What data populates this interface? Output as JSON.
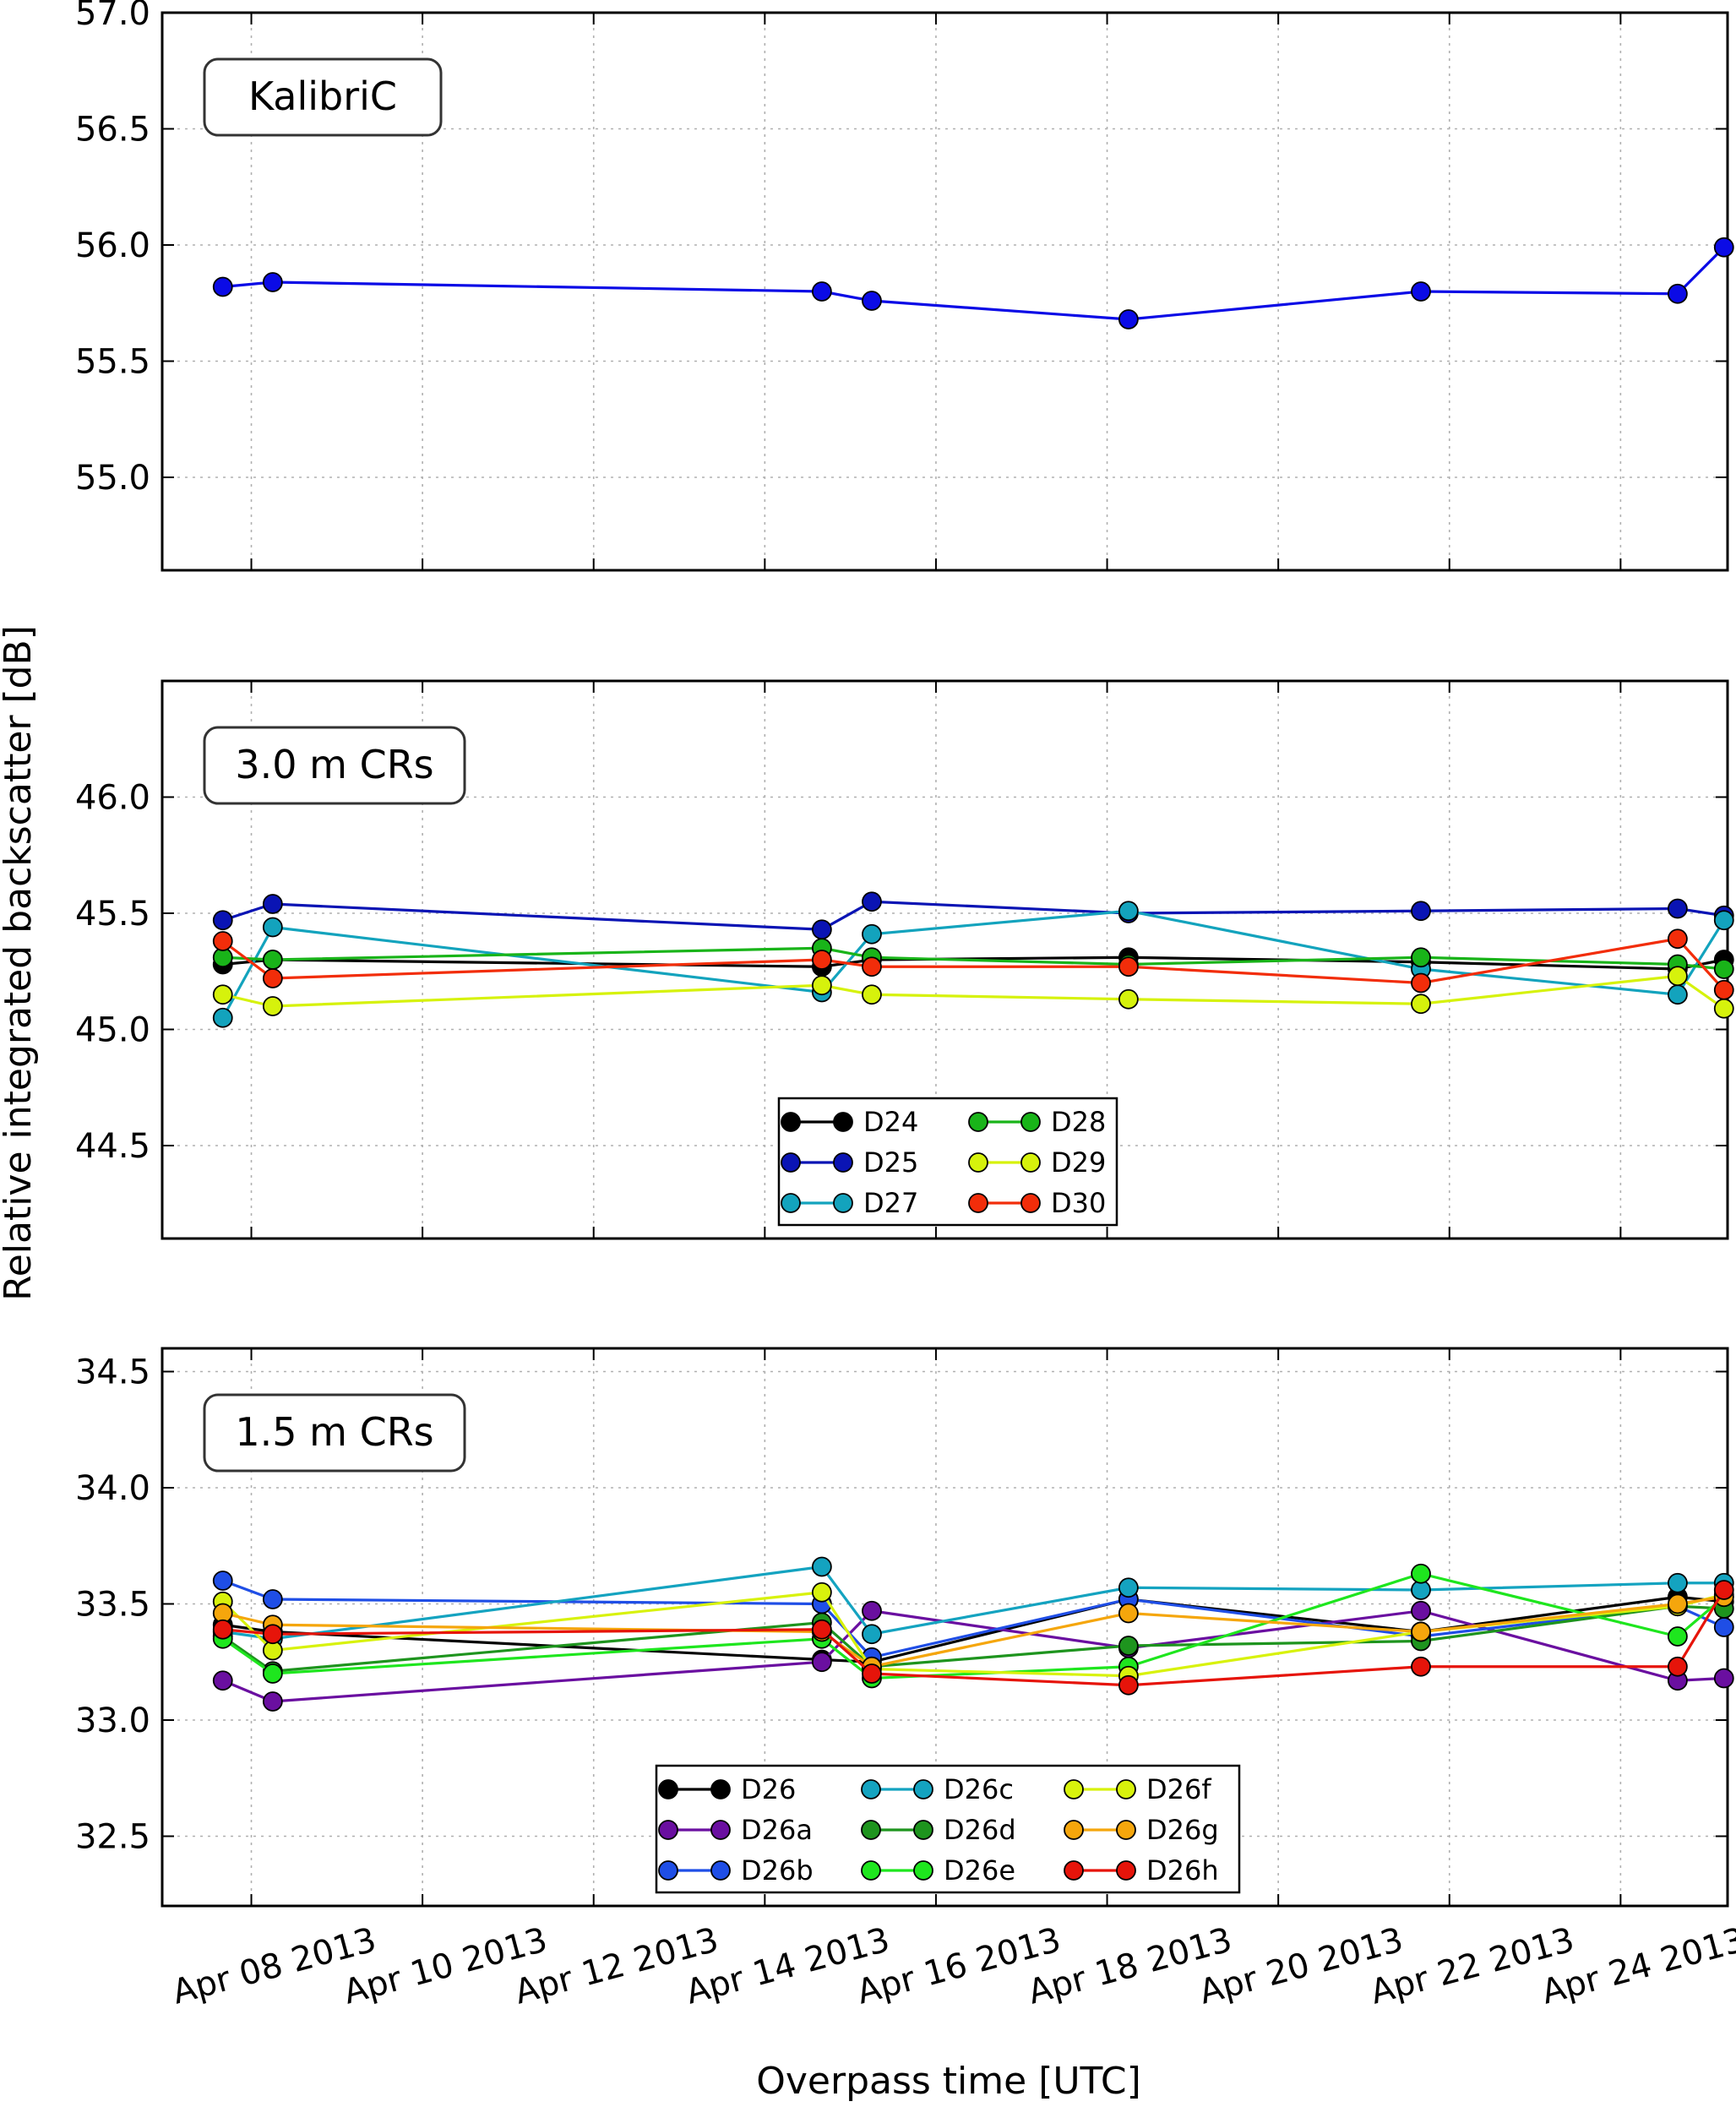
{
  "figure": {
    "ylabel": "Relative integrated backscatter [dB]",
    "xlabel": "Overpass time [UTC]"
  },
  "chart_data": [
    {
      "type": "line",
      "label": "KalibriC",
      "ylim": [
        54.6,
        57.0
      ],
      "yticks": [
        55.0,
        55.5,
        56.0,
        56.5,
        57.0
      ],
      "ytick_labels": [
        "55.0",
        "55.5",
        "56.0",
        "56.5",
        "57.0"
      ],
      "xlim": [
        "2013-04-06T23:00",
        "2013-04-25T06:00"
      ],
      "xticks": [
        "2013-04-08",
        "2013-04-10",
        "2013-04-12",
        "2013-04-14",
        "2013-04-16",
        "2013-04-18",
        "2013-04-20",
        "2013-04-22",
        "2013-04-24"
      ],
      "xtick_labels": [
        "Apr 08 2013",
        "Apr 10 2013",
        "Apr 12 2013",
        "Apr 14 2013",
        "Apr 16 2013",
        "Apr 18 2013",
        "Apr 20 2013",
        "Apr 22 2013",
        "Apr 24 2013"
      ],
      "grid": true,
      "x": [
        "2013-04-07T16:00",
        "2013-04-08T06:00",
        "2013-04-14T16:00",
        "2013-04-15T06:00",
        "2013-04-18T06:00",
        "2013-04-21T16:00",
        "2013-04-24T16:00",
        "2013-04-25T05:00"
      ],
      "series": [
        {
          "color": "#0b0be6",
          "values": [
            55.82,
            55.84,
            55.8,
            55.76,
            55.68,
            55.8,
            55.79,
            55.99
          ]
        }
      ]
    },
    {
      "type": "line",
      "label": "3.0 m CRs",
      "ylim": [
        44.1,
        46.5
      ],
      "yticks": [
        44.5,
        45.0,
        45.5,
        46.0
      ],
      "ytick_labels": [
        "44.5",
        "45.0",
        "45.5",
        "46.0"
      ],
      "xlim": [
        "2013-04-06T23:00",
        "2013-04-25T06:00"
      ],
      "xticks": [
        "2013-04-08",
        "2013-04-10",
        "2013-04-12",
        "2013-04-14",
        "2013-04-16",
        "2013-04-18",
        "2013-04-20",
        "2013-04-22",
        "2013-04-24"
      ],
      "grid": true,
      "legend": {
        "placement": "lower-center",
        "ncol": 2
      },
      "x": [
        "2013-04-07T16:00",
        "2013-04-08T06:00",
        "2013-04-14T16:00",
        "2013-04-15T06:00",
        "2013-04-18T06:00",
        "2013-04-21T16:00",
        "2013-04-24T16:00",
        "2013-04-25T05:00"
      ],
      "series": [
        {
          "name": "D24",
          "color": "#000000",
          "values": [
            45.28,
            45.3,
            45.27,
            45.3,
            45.31,
            45.29,
            45.26,
            45.3
          ]
        },
        {
          "name": "D25",
          "color": "#0a14b4",
          "values": [
            45.47,
            45.54,
            45.43,
            45.55,
            45.5,
            45.51,
            45.52,
            45.49
          ]
        },
        {
          "name": "D27",
          "color": "#13a3bd",
          "values": [
            45.05,
            45.44,
            45.16,
            45.41,
            45.51,
            45.26,
            45.15,
            45.47
          ]
        },
        {
          "name": "D28",
          "color": "#19b419",
          "values": [
            45.31,
            45.3,
            45.35,
            45.31,
            45.28,
            45.31,
            45.28,
            45.26
          ]
        },
        {
          "name": "D29",
          "color": "#d6f20c",
          "values": [
            45.15,
            45.1,
            45.19,
            45.15,
            45.13,
            45.11,
            45.23,
            45.09
          ]
        },
        {
          "name": "D30",
          "color": "#f22d0a",
          "values": [
            45.38,
            45.22,
            45.3,
            45.27,
            45.27,
            45.2,
            45.39,
            45.17
          ]
        }
      ]
    },
    {
      "type": "line",
      "label": "1.5 m CRs",
      "ylim": [
        32.2,
        34.6
      ],
      "yticks": [
        32.5,
        33.0,
        33.5,
        34.0,
        34.5
      ],
      "ytick_labels": [
        "32.5",
        "33.0",
        "33.5",
        "34.0",
        "34.5"
      ],
      "xlim": [
        "2013-04-06T23:00",
        "2013-04-25T06:00"
      ],
      "xticks": [
        "2013-04-08",
        "2013-04-10",
        "2013-04-12",
        "2013-04-14",
        "2013-04-16",
        "2013-04-18",
        "2013-04-20",
        "2013-04-22",
        "2013-04-24"
      ],
      "grid": true,
      "legend": {
        "placement": "lower-center",
        "ncol": 3
      },
      "x": [
        "2013-04-07T16:00",
        "2013-04-08T06:00",
        "2013-04-14T16:00",
        "2013-04-15T06:00",
        "2013-04-18T06:00",
        "2013-04-21T16:00",
        "2013-04-24T16:00",
        "2013-04-25T05:00"
      ],
      "series": [
        {
          "name": "D26",
          "color": "#000000",
          "values": [
            33.41,
            33.38,
            33.26,
            33.25,
            33.52,
            33.38,
            33.53,
            33.51
          ]
        },
        {
          "name": "D26a",
          "color": "#6a0fa0",
          "values": [
            33.17,
            33.08,
            33.25,
            33.47,
            33.31,
            33.47,
            33.17,
            33.18
          ]
        },
        {
          "name": "D26b",
          "color": "#1f4ee6",
          "values": [
            33.6,
            33.52,
            33.5,
            33.27,
            33.52,
            33.36,
            33.49,
            33.4
          ]
        },
        {
          "name": "D26c",
          "color": "#14a3c0",
          "values": [
            33.38,
            33.35,
            33.66,
            33.37,
            33.57,
            33.56,
            33.59,
            33.59
          ]
        },
        {
          "name": "D26d",
          "color": "#1e941e",
          "values": [
            33.36,
            33.21,
            33.42,
            33.23,
            33.32,
            33.34,
            33.49,
            33.48
          ]
        },
        {
          "name": "D26e",
          "color": "#1ee61e",
          "values": [
            33.35,
            33.2,
            33.35,
            33.18,
            33.23,
            33.63,
            33.36,
            33.53
          ]
        },
        {
          "name": "D26f",
          "color": "#d8f20c",
          "values": [
            33.51,
            33.3,
            33.55,
            33.22,
            33.19,
            33.38,
            33.49,
            33.54
          ]
        },
        {
          "name": "D26g",
          "color": "#f5a60c",
          "values": [
            33.46,
            33.41,
            33.38,
            33.23,
            33.46,
            33.38,
            33.5,
            33.53
          ]
        },
        {
          "name": "D26h",
          "color": "#e6140a",
          "values": [
            33.39,
            33.37,
            33.39,
            33.2,
            33.15,
            33.23,
            33.23,
            33.56
          ]
        }
      ]
    }
  ]
}
